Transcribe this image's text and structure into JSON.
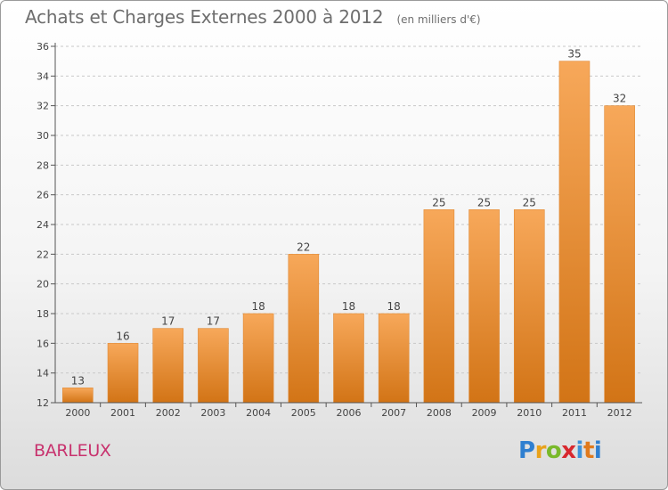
{
  "header": {
    "title": "Achats et Charges Externes 2000 à 2012",
    "unit": "(en milliers d'€)"
  },
  "footer": {
    "commune": "BARLEUX",
    "logo_text": "Proxiti"
  },
  "colors": {
    "bar_light": "#f7a85a",
    "bar_dark": "#d27416",
    "commune": "#c8326e",
    "axis": "#555555"
  },
  "chart_data": {
    "type": "bar",
    "title": "Achats et Charges Externes 2000 à 2012",
    "subtitle": "(en milliers d'€)",
    "categories": [
      "2000",
      "2001",
      "2002",
      "2003",
      "2004",
      "2005",
      "2006",
      "2007",
      "2008",
      "2009",
      "2010",
      "2011",
      "2012"
    ],
    "values": [
      13,
      16,
      17,
      17,
      18,
      22,
      18,
      18,
      25,
      25,
      25,
      35,
      32
    ],
    "ylim": [
      12,
      36
    ],
    "yticks": [
      12,
      14,
      16,
      18,
      20,
      22,
      24,
      26,
      28,
      30,
      32,
      34,
      36
    ],
    "grid": "horizontal dashed",
    "data_labels": true
  }
}
